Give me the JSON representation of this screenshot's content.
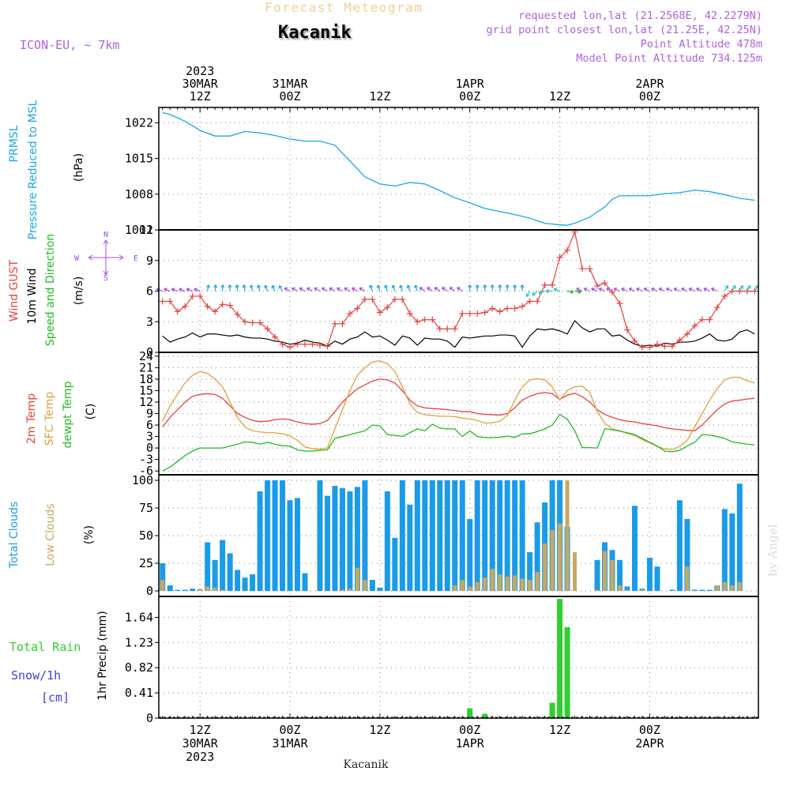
{
  "header": {
    "subtitle": "Forecast Meteogram",
    "title": "Kacanik",
    "model": "ICON-EU, ~ 7km",
    "requested": "requested lon,lat (21.2568E, 42.2279N)",
    "grid_point": "grid point closest lon,lat (21.25E, 42.25N)",
    "point_altitude": "Point Altitude 478m",
    "model_altitude": "Model Point Altitude 734.125m",
    "watermark": "by Angel",
    "footer_location": "Kacanik"
  },
  "time_axis": {
    "top_labels": [
      {
        "t": 12,
        "lines": [
          "2023",
          "30MAR",
          "12Z"
        ]
      },
      {
        "t": 24,
        "lines": [
          "31MAR",
          "00Z"
        ]
      },
      {
        "t": 36,
        "lines": [
          "12Z"
        ]
      },
      {
        "t": 48,
        "lines": [
          "1APR",
          "00Z"
        ]
      },
      {
        "t": 60,
        "lines": [
          "12Z"
        ]
      },
      {
        "t": 72,
        "lines": [
          "2APR",
          "00Z"
        ]
      }
    ],
    "bottom_labels": [
      {
        "t": 12,
        "lines": [
          "12Z",
          "30MAR",
          "2023"
        ]
      },
      {
        "t": 24,
        "lines": [
          "00Z",
          "31MAR"
        ]
      },
      {
        "t": 36,
        "lines": [
          "12Z"
        ]
      },
      {
        "t": 48,
        "lines": [
          "00Z",
          "1APR"
        ]
      },
      {
        "t": 60,
        "lines": [
          "12Z"
        ]
      },
      {
        "t": 72,
        "lines": [
          "00Z",
          "2APR"
        ]
      }
    ]
  },
  "colors": {
    "pressure": "#1aa7e8",
    "gust": "#e8423c",
    "wind": "#000000",
    "green": "#22bb22",
    "purple": "#a050e0",
    "sfc": "#e0a040",
    "total_clouds": "#1a9be8",
    "low_clouds": "#c8a860",
    "rain": "#2fcf2f",
    "snow": "#4040e0",
    "label_purple": "#b060e0"
  },
  "panels": {
    "pressure": {
      "labels": [
        "PRMSL",
        "Pressure Reduced to MSL"
      ],
      "unit": "(hPa)",
      "ticks": [
        "1022",
        "1015",
        "1008",
        "1001"
      ]
    },
    "wind": {
      "labels": [
        "Wind GUST",
        "10m Wind",
        "Speed and Direction"
      ],
      "unit": "(m/s)",
      "ticks": [
        "12",
        "9",
        "6",
        "3",
        "0"
      ],
      "compass": {
        "n": "N",
        "s": "S",
        "w": "W",
        "e": "E"
      }
    },
    "temp": {
      "labels": [
        "2m Temp",
        "SFC Temp",
        "dewpt Temp"
      ],
      "unit": "(C)",
      "ticks": [
        "24",
        "21",
        "18",
        "15",
        "12",
        "9",
        "6",
        "3",
        "0",
        "-3",
        "-6"
      ]
    },
    "clouds": {
      "labels": [
        "Total Clouds",
        "Low Clouds"
      ],
      "unit": "(%)",
      "ticks": [
        "100",
        "75",
        "50",
        "25",
        "0"
      ]
    },
    "precip": {
      "labels": [
        "Total Rain",
        "Snow/1h",
        "[cm]"
      ],
      "unit": "1hr Precip (mm)",
      "ticks": [
        "1.64",
        "1.23",
        "0.82",
        "0.41",
        "0"
      ]
    }
  },
  "chart_data": [
    {
      "type": "line",
      "title": "PRMSL Pressure Reduced to MSL",
      "ylabel": "(hPa)",
      "ylim": [
        1001,
        1025
      ],
      "x_hours_since_30MAR_00Z": [
        7,
        8,
        10,
        12,
        14,
        16,
        18,
        20,
        22,
        24,
        26,
        28,
        30,
        32,
        34,
        36,
        38,
        40,
        42,
        44,
        46,
        48,
        50,
        52,
        54,
        56,
        58,
        60,
        61,
        62,
        64,
        66,
        67,
        68,
        70,
        72,
        74,
        76,
        78,
        80,
        82,
        84,
        86
      ],
      "series": [
        {
          "name": "PRMSL",
          "values": [
            1024,
            1023.6,
            1022.3,
            1020.5,
            1019.4,
            1019.4,
            1020.3,
            1020,
            1019.5,
            1018.8,
            1018.4,
            1018.4,
            1017.6,
            1014.5,
            1011.4,
            1010,
            1009.6,
            1010.3,
            1010,
            1008.7,
            1007.3,
            1006.3,
            1005.2,
            1004.6,
            1004,
            1003.3,
            1002.3,
            1002,
            1001.9,
            1002.3,
            1003.5,
            1005.5,
            1007,
            1007.7,
            1007.7,
            1007.7,
            1008.1,
            1008.3,
            1008.8,
            1008.5,
            1007.9,
            1007.2,
            1006.8
          ]
        }
      ]
    },
    {
      "type": "line",
      "title": "Wind GUST / 10m Wind Speed and Direction",
      "ylabel": "(m/s)",
      "ylim": [
        0,
        12
      ],
      "x_hours_since_30MAR_00Z": [
        7,
        8,
        9,
        10,
        11,
        12,
        13,
        14,
        15,
        16,
        17,
        18,
        19,
        20,
        21,
        22,
        23,
        24,
        25,
        26,
        27,
        28,
        29,
        30,
        31,
        32,
        33,
        34,
        35,
        36,
        37,
        38,
        39,
        40,
        41,
        42,
        43,
        44,
        45,
        46,
        47,
        48,
        49,
        50,
        51,
        52,
        53,
        54,
        55,
        56,
        57,
        58,
        59,
        60,
        61,
        62,
        63,
        64,
        65,
        66,
        67,
        68,
        69,
        70,
        71,
        72,
        73,
        74,
        75,
        76,
        77,
        78,
        79,
        80,
        81,
        82,
        83,
        84,
        85,
        86
      ],
      "series": [
        {
          "name": "Wind GUST",
          "values": [
            5,
            5,
            4,
            4.5,
            5.5,
            5.5,
            4.5,
            4,
            4.7,
            4.6,
            3.7,
            3,
            2.9,
            2.9,
            2.3,
            1.5,
            0.8,
            0.5,
            0.8,
            0.8,
            0.8,
            0.7,
            0.6,
            2.8,
            2.8,
            3.8,
            4.3,
            5.2,
            5.2,
            3.9,
            4.4,
            5.2,
            5.2,
            3.8,
            3,
            3.2,
            3.2,
            2.3,
            2.3,
            2.3,
            3.8,
            3.8,
            3.8,
            3.9,
            4.3,
            4,
            4.3,
            4.3,
            4.5,
            5,
            5,
            6.6,
            6.6,
            9.3,
            10,
            11.8,
            8.2,
            8.2,
            6.5,
            6.8,
            5.9,
            4.8,
            2.2,
            1.1,
            0.5,
            0.5,
            0.8,
            0.6,
            0.6,
            1.2,
            1.8,
            2.6,
            3.2,
            3.2,
            4.4,
            5.5,
            6,
            6,
            6,
            6
          ]
        },
        {
          "name": "10m Wind",
          "values": [
            1.6,
            1,
            1.3,
            1.5,
            1.9,
            1.5,
            1.8,
            1.8,
            1.7,
            1.6,
            1.7,
            1.5,
            1.4,
            1.4,
            1.3,
            1.1,
            1,
            0.8,
            0.9,
            1.2,
            1,
            0.9,
            0.6,
            1.1,
            0.8,
            1.3,
            1.5,
            2,
            1.5,
            1.6,
            1.2,
            0.7,
            1.6,
            1.4,
            0.7,
            1.4,
            1.3,
            1.3,
            1.1,
            0.5,
            1.5,
            1.4,
            1.5,
            1.6,
            1.6,
            1.7,
            1.7,
            1.6,
            0.5,
            1.6,
            2.3,
            2.2,
            2.3,
            2.1,
            1.8,
            3.1,
            2.4,
            2,
            2.3,
            2.3,
            1.6,
            1.7,
            1.2,
            0.8,
            0.6,
            0.7,
            0.6,
            0.9,
            0.8,
            1,
            1,
            1.1,
            1.4,
            1.8,
            1.2,
            1.1,
            1.3,
            2,
            2.2,
            1.8
          ]
        }
      ]
    },
    {
      "type": "line",
      "title": "2m Temp / SFC Temp / dewpt Temp",
      "ylabel": "(C)",
      "ylim": [
        -7,
        25
      ],
      "x_hours_since_30MAR_00Z": [
        7,
        8,
        9,
        10,
        11,
        12,
        13,
        14,
        15,
        16,
        17,
        18,
        19,
        20,
        21,
        22,
        23,
        24,
        25,
        26,
        27,
        28,
        29,
        30,
        31,
        32,
        33,
        34,
        35,
        36,
        37,
        38,
        39,
        40,
        41,
        42,
        43,
        44,
        45,
        46,
        47,
        48,
        49,
        50,
        51,
        52,
        53,
        54,
        55,
        56,
        57,
        58,
        59,
        60,
        61,
        62,
        63,
        64,
        65,
        66,
        67,
        68,
        69,
        70,
        71,
        72,
        73,
        74,
        75,
        76,
        77,
        78,
        79,
        80,
        81,
        82,
        83,
        84,
        85,
        86
      ],
      "series": [
        {
          "name": "2m Temp",
          "values": [
            5.5,
            8,
            10,
            12,
            13.5,
            14,
            14.2,
            14,
            13,
            11,
            9,
            8,
            7.2,
            6.9,
            7,
            7.4,
            7.6,
            7.4,
            6.8,
            6.4,
            6.2,
            6.4,
            7.2,
            9.5,
            12,
            13.8,
            15.5,
            16.5,
            17.5,
            18,
            17.8,
            17,
            15,
            12.5,
            11,
            10.5,
            10.3,
            10.2,
            10,
            9.8,
            9.5,
            9.5,
            9,
            8.8,
            8.7,
            8.6,
            9,
            10.5,
            12.5,
            13.5,
            14.2,
            14.5,
            14.2,
            12.7,
            13.8,
            14.3,
            13.4,
            12,
            10,
            8.8,
            8,
            7.4,
            7,
            6.8,
            6.4,
            6.1,
            5.8,
            5.3,
            5,
            4.8,
            4.6,
            4.5,
            6,
            8,
            10,
            11.5,
            12.3,
            12.5,
            12.8,
            13
          ]
        },
        {
          "name": "SFC Temp",
          "values": [
            7,
            11,
            14,
            17,
            19,
            20,
            19.5,
            18,
            16,
            12,
            8,
            5.5,
            4.5,
            4.2,
            4,
            4,
            3.7,
            3.2,
            2,
            0.3,
            -0.2,
            -0.3,
            0,
            5,
            10,
            15,
            19,
            21,
            22.5,
            22.8,
            22,
            20,
            16,
            11.5,
            9.3,
            8.7,
            8.5,
            8.3,
            8.3,
            8.2,
            7.8,
            7.6,
            7.2,
            6.5,
            6.6,
            7,
            8.5,
            12.5,
            16,
            17.8,
            18.1,
            17.8,
            16,
            12.5,
            15,
            16,
            16.2,
            14.5,
            9.5,
            6.5,
            5,
            4.5,
            3.8,
            3.3,
            2.2,
            1.3,
            0.4,
            -0.2,
            -0.4,
            0.4,
            2,
            5.5,
            9,
            12.5,
            15.5,
            17.8,
            18.5,
            18.5,
            17.6,
            17
          ]
        },
        {
          "name": "dewpt Temp",
          "values": [
            -6,
            -5,
            -3.5,
            -2,
            -0.8,
            0,
            0,
            0,
            0,
            0.5,
            1,
            1.6,
            1.5,
            1,
            1.5,
            1,
            0.6,
            0.5,
            -0.5,
            -0.8,
            -0.8,
            -0.6,
            -0.5,
            2.5,
            3,
            3.5,
            4,
            4.5,
            6,
            5.8,
            3.5,
            3.3,
            3,
            4,
            5,
            4.5,
            6.2,
            5.2,
            5,
            5,
            3,
            4.5,
            3,
            2.7,
            2.7,
            2.8,
            3.1,
            2.8,
            3.7,
            3.7,
            4.3,
            5,
            6,
            8.8,
            7.5,
            4.5,
            0.1,
            0.1,
            0,
            5,
            4.8,
            4.4,
            4,
            3.5,
            2.5,
            1.5,
            0.5,
            -0.8,
            -1,
            -0.6,
            0.5,
            1.5,
            3.5,
            3.4,
            3,
            2.5,
            1.6,
            1.3,
            1,
            0.8
          ]
        }
      ]
    },
    {
      "type": "bar",
      "title": "Total Clouds / Low Clouds",
      "ylabel": "(%)",
      "ylim": [
        0,
        100
      ],
      "x_hours_since_30MAR_00Z": [
        7,
        8,
        9,
        10,
        11,
        12,
        13,
        14,
        15,
        16,
        17,
        18,
        19,
        20,
        21,
        22,
        23,
        24,
        25,
        26,
        27,
        28,
        29,
        30,
        31,
        32,
        33,
        34,
        35,
        36,
        37,
        38,
        39,
        40,
        41,
        42,
        43,
        44,
        45,
        46,
        47,
        48,
        49,
        50,
        51,
        52,
        53,
        54,
        55,
        56,
        57,
        58,
        59,
        60,
        61,
        62,
        63,
        64,
        65,
        66,
        67,
        68,
        69,
        70,
        71,
        72,
        73,
        74,
        75,
        76,
        77,
        78,
        79,
        80,
        81,
        82,
        83,
        84,
        85,
        86
      ],
      "series": [
        {
          "name": "Total Clouds",
          "values": [
            25,
            5,
            1,
            1,
            2,
            1,
            44,
            28,
            46,
            34,
            19,
            12,
            15,
            90,
            100,
            100,
            100,
            82,
            84,
            16,
            0,
            100,
            86,
            95,
            93,
            90,
            94,
            100,
            10,
            3,
            90,
            48,
            100,
            78,
            100,
            100,
            100,
            100,
            100,
            100,
            100,
            65,
            100,
            100,
            100,
            100,
            100,
            100,
            100,
            35,
            62,
            80,
            100,
            100,
            58,
            0,
            0,
            0,
            28,
            44,
            37,
            28,
            4,
            77,
            2,
            30,
            22,
            0,
            1,
            82,
            65,
            1,
            1,
            1,
            5,
            74,
            70,
            97,
            0,
            0
          ]
        },
        {
          "name": "Low Clouds",
          "values": [
            10,
            0,
            0,
            0,
            0,
            2,
            4,
            3,
            1,
            0,
            0,
            0,
            0,
            0,
            0,
            0,
            0,
            0,
            0,
            0,
            0,
            0,
            0,
            0,
            1,
            2,
            21,
            10,
            0,
            0,
            0,
            0,
            0,
            0,
            0,
            0,
            0,
            0,
            0,
            5,
            10,
            4,
            8,
            12,
            20,
            15,
            13,
            14,
            11,
            10,
            17,
            43,
            55,
            61,
            100,
            35,
            0,
            0,
            1,
            36,
            28,
            5,
            1,
            0,
            1,
            0,
            0,
            0,
            0,
            0,
            22,
            0,
            0,
            0,
            5,
            8,
            5,
            8,
            0,
            0
          ]
        }
      ]
    },
    {
      "type": "bar",
      "title": "1hr Precip",
      "ylabel": "1hr Precip (mm)",
      "ylim": [
        0,
        1.95
      ],
      "x_hours_since_30MAR_00Z": [
        48,
        50,
        58,
        59,
        60,
        61
      ],
      "series": [
        {
          "name": "Total Rain",
          "values": [
            0.16,
            0.07,
            0.02,
            0.25,
            1.94,
            1.48
          ]
        },
        {
          "name": "Snow/1h",
          "values": [
            0,
            0,
            0,
            0,
            0,
            0
          ]
        }
      ]
    }
  ]
}
